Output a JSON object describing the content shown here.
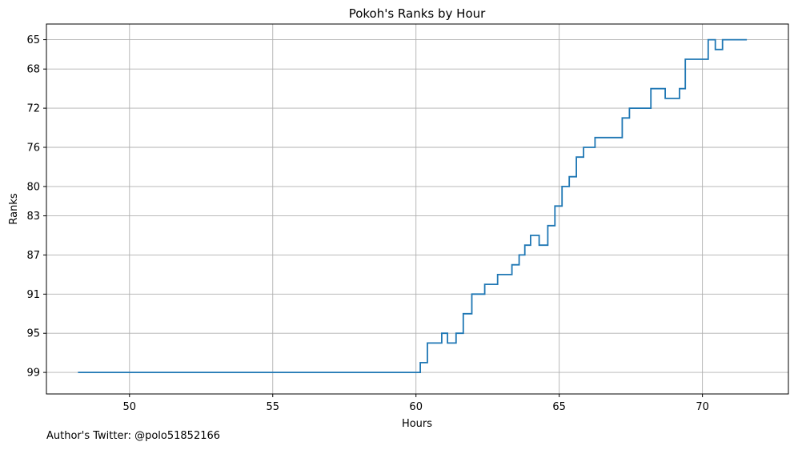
{
  "chart_data": {
    "type": "line",
    "step": true,
    "title": "Pokoh's Ranks by Hour",
    "xlabel": "Hours",
    "ylabel": "Ranks",
    "xlim": [
      47.1,
      73.0
    ],
    "ylim": [
      101.2,
      63.4
    ],
    "y_inverted": true,
    "grid": true,
    "x_ticks": [
      50,
      55,
      60,
      65,
      70
    ],
    "y_ticks": [
      65,
      68,
      72,
      76,
      80,
      83,
      87,
      91,
      95,
      99
    ],
    "line_color": "#1f77b4",
    "x": [
      48.2,
      60.15,
      60.4,
      60.9,
      61.1,
      61.4,
      61.65,
      61.95,
      62.4,
      62.85,
      63.35,
      63.6,
      63.8,
      64.0,
      64.3,
      64.6,
      64.85,
      65.1,
      65.35,
      65.6,
      65.85,
      66.25,
      67.2,
      67.45,
      68.2,
      68.7,
      69.2,
      69.4,
      70.2,
      70.45,
      70.7,
      71.55
    ],
    "y": [
      99,
      98,
      96,
      95,
      96,
      95,
      93,
      91,
      90,
      89,
      88,
      87,
      86,
      85,
      86,
      84,
      82,
      80,
      79,
      77,
      76,
      75,
      73,
      72,
      70,
      71,
      70,
      67,
      65,
      66,
      65,
      65
    ]
  },
  "footer": {
    "credit": "Author's Twitter: @polo51852166"
  }
}
